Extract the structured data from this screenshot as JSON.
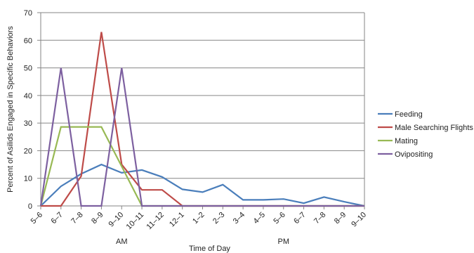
{
  "chart_data": {
    "type": "line",
    "title": "",
    "xlabel": "Time of Day",
    "ylabel": "Percent of Asilids Engaged in Specific Behaviors",
    "ylim": [
      0,
      70
    ],
    "yticks": [
      0,
      10,
      20,
      30,
      40,
      50,
      60,
      70
    ],
    "grid": "horizontal",
    "legend_position": "right",
    "categories": [
      "5–6",
      "6–7",
      "7–8",
      "8–9",
      "9–10",
      "10–11",
      "11–12",
      "12–1",
      "1–2",
      "2–3",
      "3–4",
      "4–5",
      "5–6",
      "6–7",
      "7–8",
      "8–9",
      "9–10"
    ],
    "period_labels": [
      {
        "text": "AM",
        "center_category_index": 4
      },
      {
        "text": "PM",
        "center_category_index": 12
      }
    ],
    "series": [
      {
        "name": "Feeding",
        "color": "#4a7ebb",
        "values": [
          0,
          7.1,
          11.6,
          15,
          12,
          13,
          10.5,
          6,
          5,
          7.7,
          2.2,
          2.2,
          2.5,
          1,
          3.2,
          1.5,
          0
        ]
      },
      {
        "name": "Male Searching Flights",
        "color": "#be4b48",
        "values": [
          0,
          0,
          10.8,
          63,
          15,
          5.8,
          5.8,
          0,
          0,
          0,
          0,
          0,
          0,
          0,
          0,
          0,
          0
        ]
      },
      {
        "name": "Mating",
        "color": "#98b954",
        "values": [
          0,
          28.6,
          28.6,
          28.6,
          14.3,
          0,
          0,
          0,
          0,
          0,
          0,
          0,
          0,
          0,
          0,
          0,
          0
        ]
      },
      {
        "name": "Ovipositing",
        "color": "#7d60a0",
        "values": [
          0,
          50,
          0,
          0,
          50,
          0,
          0,
          0,
          0,
          0,
          0,
          0,
          0,
          0,
          0,
          0,
          0
        ]
      }
    ]
  }
}
